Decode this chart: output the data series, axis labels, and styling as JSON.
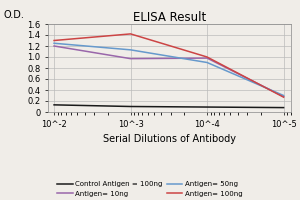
{
  "title": "ELISA Result",
  "xlabel": "Serial Dilutions of Antibody",
  "ylabel": "O.D.",
  "ylim": [
    0,
    1.6
  ],
  "lines": [
    {
      "label": "Control Antigen = 100ng",
      "color": "#1a1a1a",
      "x": [
        0.01,
        0.001,
        0.0001,
        1e-05
      ],
      "y": [
        0.13,
        0.1,
        0.09,
        0.08
      ]
    },
    {
      "label": "Antigen= 10ng",
      "color": "#9966AA",
      "x": [
        0.01,
        0.001,
        0.0001,
        1e-05
      ],
      "y": [
        1.2,
        0.97,
        0.98,
        0.28
      ]
    },
    {
      "label": "Antigen= 50ng",
      "color": "#6699CC",
      "x": [
        0.01,
        0.001,
        0.0001,
        1e-05
      ],
      "y": [
        1.25,
        1.13,
        0.9,
        0.3
      ]
    },
    {
      "label": "Antigen= 100ng",
      "color": "#CC4444",
      "x": [
        0.01,
        0.001,
        0.0001,
        1e-05
      ],
      "y": [
        1.3,
        1.42,
        1.0,
        0.27
      ]
    }
  ],
  "yticks": [
    0,
    0.2,
    0.4,
    0.6,
    0.8,
    1.0,
    1.2,
    1.4,
    1.6
  ],
  "x_ticks": [
    0.01,
    0.001,
    0.0001,
    1e-05
  ],
  "x_tick_labels": [
    "10^-2",
    "10^-3",
    "10^-4",
    "10^-5"
  ],
  "legend_order": [
    "Control Antigen = 100ng",
    "Antigen= 10ng",
    "Antigen= 50ng",
    "Antigen= 100ng"
  ],
  "background_color": "#f0ede8",
  "grid_color": "#bbbbbb"
}
